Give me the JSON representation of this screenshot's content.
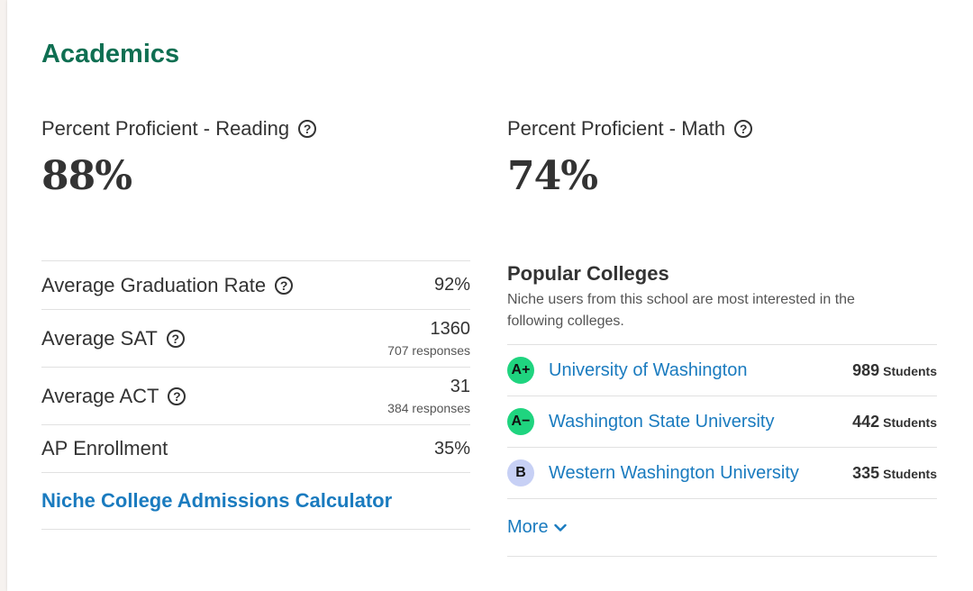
{
  "section": {
    "title": "Academics"
  },
  "metrics": [
    {
      "label": "Percent Proficient - Reading",
      "value": "88%"
    },
    {
      "label": "Percent Proficient - Math",
      "value": "74%"
    }
  ],
  "stats": [
    {
      "label": "Average Graduation Rate",
      "value": "92%",
      "sub": "",
      "has_help": true
    },
    {
      "label": "Average SAT",
      "value": "1360",
      "sub": "707 responses",
      "has_help": true
    },
    {
      "label": "Average ACT",
      "value": "31",
      "sub": "384 responses",
      "has_help": true
    },
    {
      "label": "AP Enrollment",
      "value": "35%",
      "sub": "",
      "has_help": false
    }
  ],
  "calculator": {
    "label": "Niche College Admissions Calculator"
  },
  "help_icon_glyph": "?",
  "popular_colleges": {
    "title": "Popular Colleges",
    "description": "Niche users from this school are most interested in the following colleges.",
    "items": [
      {
        "grade": "A+",
        "grade_color": "#1fd47f",
        "name": "University of Washington",
        "count": "989",
        "unit": "Students"
      },
      {
        "grade": "A−",
        "grade_color": "#1fd47f",
        "name": "Washington State University",
        "count": "442",
        "unit": "Students"
      },
      {
        "grade": "B",
        "grade_color": "#c7d0f5",
        "name": "Western Washington University",
        "count": "335",
        "unit": "Students"
      }
    ],
    "more_label": "More"
  },
  "colors": {
    "accent_green": "#0f6f52",
    "link_blue": "#1a7bbf"
  }
}
